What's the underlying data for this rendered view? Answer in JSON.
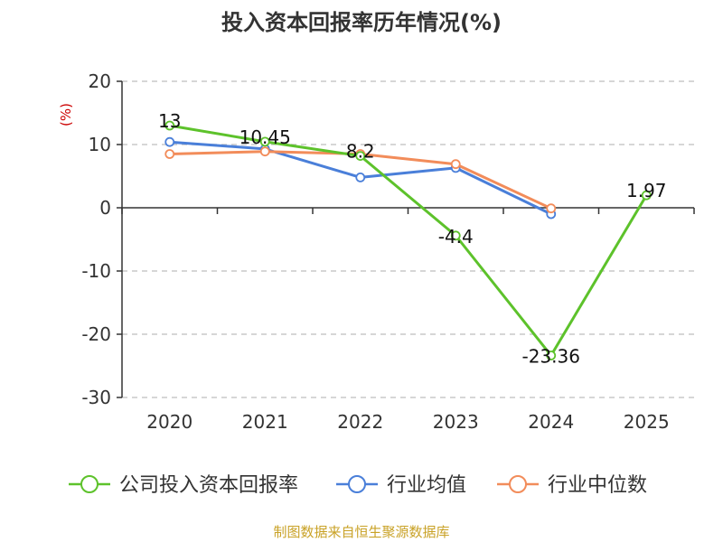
{
  "chart_data": {
    "type": "line",
    "title": "投入资本回报率历年情况(%)",
    "ylabel": "(%)",
    "xlabel": "",
    "categories": [
      "2020",
      "2021",
      "2022",
      "2023",
      "2024",
      "2025"
    ],
    "ylim": [
      -30,
      20
    ],
    "yticks": [
      20,
      10,
      0,
      -10,
      -20,
      -30
    ],
    "grid": true,
    "legend_position": "bottom",
    "series": [
      {
        "name": "公司投入资本回报率",
        "color": "#5dc22b",
        "values": [
          13,
          10.45,
          8.2,
          -4.4,
          -23.36,
          1.97
        ],
        "labels": [
          "13",
          "10.45",
          "8.2",
          "-4.4",
          "-23.36",
          "1.97"
        ]
      },
      {
        "name": "行业均值",
        "color": "#4a7fd9",
        "values": [
          10.4,
          9.3,
          4.8,
          6.3,
          -1.0,
          null
        ]
      },
      {
        "name": "行业中位数",
        "color": "#f28c5a",
        "values": [
          8.5,
          8.9,
          8.5,
          6.9,
          -0.1,
          null
        ]
      }
    ],
    "source": "制图数据来自恒生聚源数据库"
  }
}
